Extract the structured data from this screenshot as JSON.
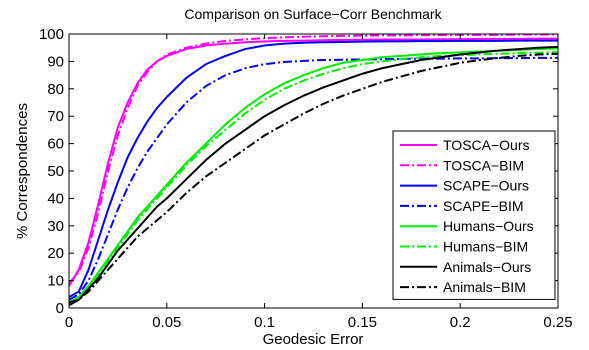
{
  "chart_data": {
    "type": "line",
    "title": "Comparison on Surface−Corr Benchmark",
    "xlabel": "Geodesic Error",
    "ylabel": "% Correspondences",
    "xlim": [
      0,
      0.25
    ],
    "ylim": [
      0,
      100
    ],
    "xticks": [
      0,
      0.05,
      0.1,
      0.15,
      0.2,
      0.25
    ],
    "xtick_labels": [
      "0",
      "0.05",
      "0.1",
      "0.15",
      "0.2",
      "0.25"
    ],
    "yticks": [
      0,
      10,
      20,
      30,
      40,
      50,
      60,
      70,
      80,
      90,
      100
    ],
    "ytick_labels": [
      "0",
      "10",
      "20",
      "30",
      "40",
      "50",
      "60",
      "70",
      "80",
      "90",
      "100"
    ],
    "grid": false,
    "legend_position": "bottom-right",
    "x": [
      0,
      0.005,
      0.01,
      0.015,
      0.02,
      0.025,
      0.03,
      0.035,
      0.04,
      0.045,
      0.05,
      0.06,
      0.07,
      0.08,
      0.09,
      0.1,
      0.11,
      0.12,
      0.13,
      0.14,
      0.15,
      0.16,
      0.17,
      0.18,
      0.19,
      0.2,
      0.21,
      0.22,
      0.23,
      0.24,
      0.25
    ],
    "series": [
      {
        "name": "TOSCA−Ours",
        "color": "#ff00ff",
        "dash": "solid",
        "values": [
          8,
          14,
          24,
          38,
          53,
          66,
          75,
          82,
          87,
          90,
          92,
          94.5,
          95.8,
          96.5,
          97,
          97.3,
          97.5,
          97.6,
          97.7,
          97.8,
          97.9,
          98,
          98,
          98,
          98.1,
          98.1,
          98.2,
          98.2,
          98.2,
          98.3,
          98.3
        ]
      },
      {
        "name": "TOSCA−BIM",
        "color": "#ff00ff",
        "dash": "dashdot",
        "values": [
          9,
          13,
          22,
          35,
          50,
          63,
          73,
          81,
          86,
          90,
          92.5,
          95,
          96.5,
          97.5,
          98,
          98.5,
          98.8,
          99,
          99.2,
          99.3,
          99.4,
          99.5,
          99.5,
          99.6,
          99.6,
          99.7,
          99.7,
          99.7,
          99.8,
          99.8,
          99.8
        ]
      },
      {
        "name": "SCAPE−Ours",
        "color": "#0000ff",
        "dash": "solid",
        "values": [
          4,
          6,
          14,
          25,
          36,
          46,
          55,
          62,
          68,
          73,
          77,
          84,
          89,
          92,
          94.5,
          95.8,
          96.5,
          96.8,
          97,
          97.1,
          97.2,
          97.3,
          97.3,
          97.4,
          97.4,
          97.5,
          97.5,
          97.5,
          97.6,
          97.6,
          97.6
        ]
      },
      {
        "name": "SCAPE−BIM",
        "color": "#0000ff",
        "dash": "dashdot",
        "values": [
          3,
          5,
          10,
          18,
          27,
          36,
          44,
          51,
          57,
          62,
          67,
          75,
          81,
          85,
          87.5,
          89,
          89.8,
          90.2,
          90.5,
          90.6,
          90.7,
          90.8,
          90.9,
          91,
          91,
          91.1,
          91.1,
          91.2,
          91.2,
          91.3,
          91.3
        ]
      },
      {
        "name": "Humans−Ours",
        "color": "#00ee00",
        "dash": "solid",
        "values": [
          2,
          4,
          8,
          13,
          18,
          23,
          28,
          33,
          37,
          41,
          45,
          53,
          60,
          67,
          73,
          78,
          82,
          85,
          87.5,
          89.5,
          90.5,
          91.5,
          92,
          92.5,
          93,
          93.3,
          93.6,
          93.9,
          94.2,
          94.5,
          94.8
        ]
      },
      {
        "name": "Humans−BIM",
        "color": "#00ee00",
        "dash": "dashdot",
        "values": [
          2,
          4,
          8,
          12,
          17,
          22,
          27,
          32,
          36,
          40,
          44,
          52,
          59,
          65,
          71,
          76,
          80,
          83,
          85.5,
          87.5,
          89,
          90,
          90.8,
          91.5,
          92,
          92.3,
          92.6,
          92.8,
          93,
          93.2,
          93.4
        ]
      },
      {
        "name": "Animals−Ours",
        "color": "#000000",
        "dash": "solid",
        "values": [
          1,
          3,
          7,
          11,
          16,
          21,
          25,
          29,
          33,
          37,
          40,
          47,
          54,
          60,
          65,
          70,
          74,
          77.5,
          80.5,
          83,
          85.5,
          87.5,
          89,
          90.5,
          91.5,
          92.5,
          93.3,
          94,
          94.5,
          95,
          95.3
        ]
      },
      {
        "name": "Animals−BIM",
        "color": "#000000",
        "dash": "dashdot",
        "values": [
          2,
          3,
          6,
          10,
          14,
          18,
          22,
          26,
          29,
          32,
          35,
          42,
          48,
          53,
          58,
          63,
          67,
          71,
          74.5,
          77.5,
          80,
          82.5,
          84.5,
          86.5,
          88,
          89.5,
          90.5,
          91.3,
          92,
          92.5,
          92.8
        ]
      }
    ]
  }
}
